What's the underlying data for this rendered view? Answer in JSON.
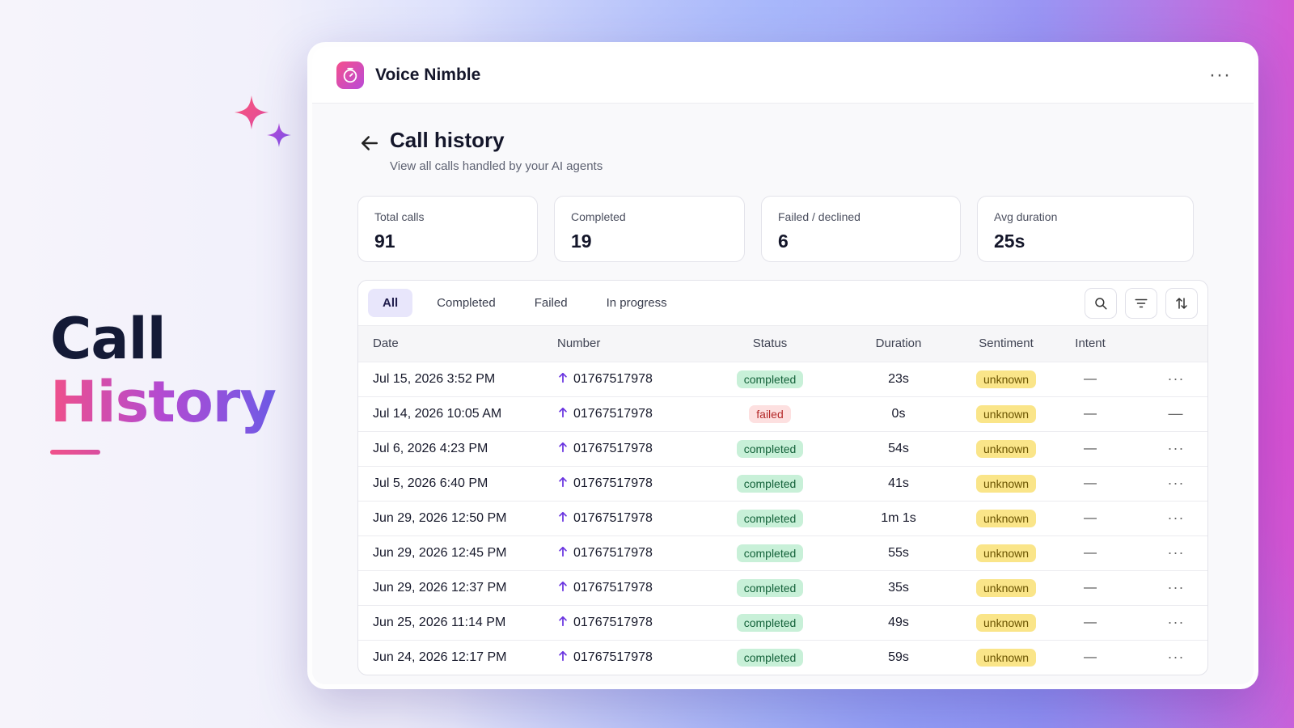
{
  "hero": {
    "line1": "Call",
    "line2": "History"
  },
  "app": {
    "name": "Voice Nimble",
    "menu_icon": "more-horizontal-icon"
  },
  "page": {
    "title": "Call history",
    "subtitle": "View all calls handled by your AI agents"
  },
  "stats": [
    {
      "label": "Total calls",
      "value": "91"
    },
    {
      "label": "Completed",
      "value": "19"
    },
    {
      "label": "Failed / declined",
      "value": "6"
    },
    {
      "label": "Avg duration",
      "value": "25s"
    }
  ],
  "tabs": [
    {
      "label": "All",
      "active": true
    },
    {
      "label": "Completed",
      "active": false
    },
    {
      "label": "Failed",
      "active": false
    },
    {
      "label": "In progress",
      "active": false
    }
  ],
  "columns": {
    "date": "Date",
    "number": "Number",
    "status": "Status",
    "duration": "Duration",
    "sentiment": "Sentiment",
    "intent": "Intent"
  },
  "rows": [
    {
      "date": "Jul 15, 2026 3:52 PM",
      "number": "01767517978",
      "status": "completed",
      "duration": "23s",
      "sentiment": "unknown",
      "intent": "—",
      "action": "···"
    },
    {
      "date": "Jul 14, 2026 10:05 AM",
      "number": "01767517978",
      "status": "failed",
      "duration": "0s",
      "sentiment": "unknown",
      "intent": "—",
      "action": "—"
    },
    {
      "date": "Jul 6, 2026 4:23 PM",
      "number": "01767517978",
      "status": "completed",
      "duration": "54s",
      "sentiment": "unknown",
      "intent": "—",
      "action": "···"
    },
    {
      "date": "Jul 5, 2026 6:40 PM",
      "number": "01767517978",
      "status": "completed",
      "duration": "41s",
      "sentiment": "unknown",
      "intent": "—",
      "action": "···"
    },
    {
      "date": "Jun 29, 2026 12:50 PM",
      "number": "01767517978",
      "status": "completed",
      "duration": "1m 1s",
      "sentiment": "unknown",
      "intent": "—",
      "action": "···"
    },
    {
      "date": "Jun 29, 2026 12:45 PM",
      "number": "01767517978",
      "status": "completed",
      "duration": "55s",
      "sentiment": "unknown",
      "intent": "—",
      "action": "···"
    },
    {
      "date": "Jun 29, 2026 12:37 PM",
      "number": "01767517978",
      "status": "completed",
      "duration": "35s",
      "sentiment": "unknown",
      "intent": "—",
      "action": "···"
    },
    {
      "date": "Jun 25, 2026 11:14 PM",
      "number": "01767517978",
      "status": "completed",
      "duration": "49s",
      "sentiment": "unknown",
      "intent": "—",
      "action": "···"
    },
    {
      "date": "Jun 24, 2026 12:17 PM",
      "number": "01767517978",
      "status": "completed",
      "duration": "59s",
      "sentiment": "unknown",
      "intent": "—",
      "action": "···"
    }
  ],
  "colors": {
    "accent": "#6e5be6",
    "brand_pink": "#f0508a",
    "completed_bg": "#c8f0d8",
    "failed_bg": "#fde0e0",
    "sentiment_bg": "#fae589"
  }
}
